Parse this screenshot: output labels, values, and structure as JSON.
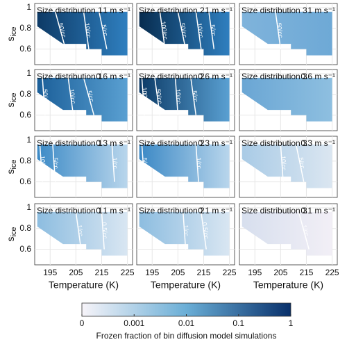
{
  "axes": {
    "xlim": [
      189,
      227
    ],
    "ylim": [
      0.45,
      1.04
    ],
    "xticks": [
      195,
      205,
      215,
      225
    ],
    "yticks": [
      0.6,
      0.8,
      1
    ],
    "xlabel": "Temperature (K)",
    "ylabel": "s",
    "ylabel_sub": "ice",
    "domain": [
      [
        190,
        0.96
      ],
      [
        225,
        0.96
      ],
      [
        225,
        0.54
      ],
      [
        215,
        0.54
      ],
      [
        215,
        0.6
      ],
      [
        209,
        0.6
      ],
      [
        209,
        0.65
      ],
      [
        200,
        0.65
      ],
      [
        190,
        0.82
      ]
    ],
    "grid": true
  },
  "chart_data": [
    {
      "type": "contour",
      "title": "Size distribution 1",
      "speed": "1 m s⁻¹",
      "colors": [
        "#0d3a66",
        "#2f7fbf"
      ],
      "contours": [
        {
          "label": "50/cc",
          "x": [
            197,
            201
          ]
        },
        {
          "label": "10/cc",
          "x": [
            208,
            210
          ]
        },
        {
          "label": "5/cc",
          "x": [
            214,
            217
          ]
        }
      ]
    },
    {
      "type": "contour",
      "title": "Size distribution 2",
      "speed": "1 m s⁻¹",
      "colors": [
        "#072c4f",
        "#2f7fbf"
      ],
      "contours": [
        {
          "label": "100/cc",
          "x": [
            198,
            200
          ]
        },
        {
          "label": "50/cc",
          "x": [
            205,
            208
          ]
        },
        {
          "label": "10/cc",
          "x": [
            212,
            214
          ]
        },
        {
          "label": "5/cc",
          "x": [
            217,
            219
          ]
        }
      ]
    },
    {
      "type": "contour",
      "title": "Size distribution 3",
      "speed": "1 m s⁻¹",
      "colors": [
        "#7fb3db",
        "#6ea9d6"
      ],
      "contours": [
        {
          "label": "50/cc",
          "x": [
            203,
            205
          ]
        }
      ]
    },
    {
      "type": "contour",
      "title": "Size distribution 1",
      "speed": "0.6 m s⁻¹",
      "colors": [
        "#1b5f99",
        "#5aa0d2"
      ],
      "contours": [
        {
          "label": "50/cc",
          "x": [
            192,
            193
          ]
        },
        {
          "label": "10/cc",
          "x": [
            202,
            204
          ]
        },
        {
          "label": "5/cc",
          "x": [
            208,
            212
          ]
        }
      ]
    },
    {
      "type": "contour",
      "title": "Size distribution 2",
      "speed": "0.6 m s⁻¹",
      "colors": [
        "#0b3a66",
        "#5aa0d2"
      ],
      "contours": [
        {
          "label": "100/cc",
          "x": [
            191,
            192
          ]
        },
        {
          "label": "50/cc",
          "x": [
            196,
            198
          ]
        },
        {
          "label": "10/cc",
          "x": [
            204,
            205
          ]
        },
        {
          "label": "5/cc",
          "x": [
            210,
            212
          ]
        }
      ]
    },
    {
      "type": "contour",
      "title": "Size distribution 3",
      "speed": "0.6 m s⁻¹",
      "colors": [
        "#6aa6d4",
        "#8ebfe0"
      ],
      "contours": []
    },
    {
      "type": "contour",
      "title": "Size distribution 1",
      "speed": "0.3 m s⁻¹",
      "colors": [
        "#3c8ac6",
        "#b9d6ec"
      ],
      "contours": [
        {
          "label": "10/cc",
          "x": [
            191,
            192
          ]
        },
        {
          "label": "5/cc",
          "x": [
            196,
            197
          ]
        },
        {
          "label": "1/cc",
          "x": [
            219,
            220
          ]
        }
      ]
    },
    {
      "type": "contour",
      "title": "Size distribution 2",
      "speed": "0.3 m s⁻¹",
      "colors": [
        "#3a88c5",
        "#b9d6ec"
      ],
      "contours": [
        {
          "label": "5/cc",
          "x": [
            191,
            192
          ]
        },
        {
          "label": "1/cc",
          "x": [
            212,
            213
          ]
        }
      ]
    },
    {
      "type": "contour",
      "title": "Size distribution 3",
      "speed": "0.3 m s⁻¹",
      "colors": [
        "#a9cbe6",
        "#dbe6f1"
      ],
      "contours": [
        {
          "label": "10/cc",
          "x": [
            205,
            206
          ]
        },
        {
          "label": "5/cc",
          "x": [
            211,
            214
          ]
        }
      ]
    },
    {
      "type": "contour",
      "title": "Size distribution 1",
      "speed": "0.1 m s⁻¹",
      "colors": [
        "#8dbde0",
        "#d9e6f2"
      ],
      "contours": [
        {
          "label": "1/cc",
          "x": [
            205,
            207
          ]
        },
        {
          "label": "0.5/cc",
          "x": [
            215,
            216
          ]
        }
      ]
    },
    {
      "type": "contour",
      "title": "Size distribution 2",
      "speed": "0.1 m s⁻¹",
      "colors": [
        "#8dbde0",
        "#d9e6f2"
      ],
      "contours": [
        {
          "label": "1/cc",
          "x": [
            207,
            208
          ]
        },
        {
          "label": "0.5/cc",
          "x": [
            214,
            216
          ]
        }
      ]
    },
    {
      "type": "contour",
      "title": "Size distribution 3",
      "speed": "0.1 m s⁻¹",
      "colors": [
        "#d7dfee",
        "#f2eff6"
      ],
      "contours": [
        {
          "label": "1/cc",
          "x": [
            212,
            216
          ]
        }
      ]
    }
  ],
  "colorbar": {
    "ticks": [
      0,
      0.001,
      0.01,
      0.1,
      1
    ],
    "label": "Frozen fraction of bin diffusion model simulations",
    "colors": [
      "#f7f4f9",
      "#6aaed6",
      "#08306b"
    ]
  }
}
